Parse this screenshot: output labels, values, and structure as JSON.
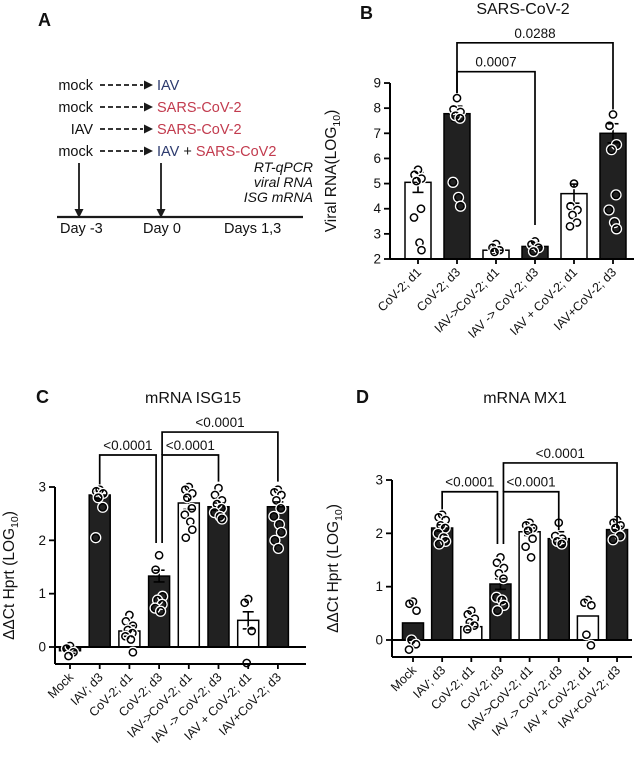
{
  "figure": {
    "background": "#ffffff"
  },
  "panel_a": {
    "label": "A",
    "rows": [
      {
        "source": "mock",
        "source_color": "black",
        "target_parts": [
          {
            "text": "IAV",
            "color": "navy"
          }
        ]
      },
      {
        "source": "mock",
        "source_color": "black",
        "target_parts": [
          {
            "text": "SARS-CoV-2",
            "color": "red"
          }
        ]
      },
      {
        "source": "IAV",
        "source_color": "navy",
        "target_parts": [
          {
            "text": "SARS-CoV-2",
            "color": "red"
          }
        ]
      },
      {
        "source": "mock",
        "source_color": "black",
        "target_parts": [
          {
            "text": "IAV",
            "color": "navy"
          },
          {
            "text": " + ",
            "color": "black"
          },
          {
            "text": "SARS-CoV2",
            "color": "red"
          }
        ]
      }
    ],
    "assay_lines": [
      "RT-qPCR",
      "viral RNA",
      "ISG mRNA"
    ],
    "timeline_labels": [
      "Day -3",
      "Day 0",
      "Days 1,3"
    ],
    "colors": {
      "navy": "#2c3a6e",
      "red": "#c23b4e",
      "black": "#1a1a1a"
    }
  },
  "chart_data": [
    {
      "panel": "B",
      "type": "bar",
      "title": "SARS-CoV-2",
      "ylabel": "Viral RNA(LOG",
      "ylabel_sub": "10",
      "ylabel_close": ")",
      "ylim": [
        2,
        9
      ],
      "yticks": [
        2,
        3,
        4,
        5,
        6,
        7,
        8,
        9
      ],
      "categories": [
        "CoV-2; d1",
        "CoV-2; d3",
        "IAV->CoV-2; d1",
        "IAV -> CoV-2; d3",
        "IAV + CoV-2; d1",
        "IAV+CoV-2; d3"
      ],
      "bars": [
        {
          "label": "CoV-2; d1",
          "fill": "white",
          "value": 5.05,
          "sem": 0.4,
          "points": [
            5.55,
            5.35,
            5.2,
            5.1,
            4.0,
            3.65,
            2.65,
            2.35
          ]
        },
        {
          "label": "CoV-2; d3",
          "fill": "black",
          "value": 7.78,
          "sem": 0.3,
          "points": [
            8.4,
            7.95,
            7.85,
            7.7,
            7.6,
            5.05,
            4.45,
            4.1
          ]
        },
        {
          "label": "IAV->CoV-2; d1",
          "fill": "white",
          "value": 2.35,
          "sem": 0.12,
          "points": [
            2.6,
            2.45,
            2.35,
            2.28
          ]
        },
        {
          "label": "IAV -> CoV-2; d3",
          "fill": "black",
          "value": 2.5,
          "sem": 0.15,
          "points": [
            2.7,
            2.58,
            2.45,
            2.3
          ]
        },
        {
          "label": "IAV + CoV-2; d1",
          "fill": "white",
          "value": 4.6,
          "sem": 0.38,
          "points": [
            5.0,
            4.1,
            3.95,
            3.75,
            3.45,
            3.3
          ]
        },
        {
          "label": "IAV+CoV-2; d3",
          "fill": "black",
          "value": 7.0,
          "sem": 0.38,
          "points": [
            7.75,
            7.3,
            6.55,
            6.35,
            4.55,
            3.95,
            3.45,
            3.2
          ]
        }
      ],
      "brackets": [
        {
          "from": 1,
          "to": 3,
          "label": "0.0007",
          "top": 9.45,
          "left_end": 8.6,
          "right_end": 3.35
        },
        {
          "from": 1,
          "to": 5,
          "label": "0.0288",
          "top": 10.6,
          "left_end": 8.6,
          "right_end": 7.95
        }
      ]
    },
    {
      "panel": "C",
      "type": "bar",
      "title": "mRNA ISG15",
      "ylabel": "ΔΔCt Hprt (LOG",
      "ylabel_sub": "10",
      "ylabel_close": ")",
      "ylim": [
        -0.4,
        3
      ],
      "yticks": [
        0,
        1,
        2,
        3
      ],
      "categories": [
        "Mock",
        "IAV; d3",
        "CoV-2; d1",
        "CoV-2; d3",
        "IAV->CoV-2; d1",
        "IAV -> CoV-2; d3",
        "IAV + CoV-2; d1",
        "IAV+CoV-2; d3"
      ],
      "bars": [
        {
          "label": "Mock",
          "fill": "black",
          "value": -0.07,
          "sem": 0.05,
          "points": [
            0.02,
            -0.03,
            -0.1,
            -0.17
          ]
        },
        {
          "label": "IAV; d3",
          "fill": "black",
          "value": 2.85,
          "sem": 0.07,
          "points": [
            2.95,
            2.92,
            2.88,
            2.8,
            2.62,
            2.05
          ]
        },
        {
          "label": "CoV-2; d1",
          "fill": "white",
          "value": 0.3,
          "sem": 0.1,
          "points": [
            0.6,
            0.48,
            0.4,
            0.32,
            0.26,
            0.2,
            0.14,
            -0.1
          ]
        },
        {
          "label": "CoV-2; d3",
          "fill": "black",
          "value": 1.33,
          "sem": 0.11,
          "points": [
            1.72,
            1.45,
            0.95,
            0.88,
            0.8,
            0.73,
            0.67
          ]
        },
        {
          "label": "IAV->CoV-2; d1",
          "fill": "white",
          "value": 2.7,
          "sem": 0.12,
          "points": [
            3.0,
            2.95,
            2.88,
            2.8,
            2.6,
            2.48,
            2.35,
            2.2,
            2.05
          ]
        },
        {
          "label": "IAV -> CoV-2; d3",
          "fill": "black",
          "value": 2.63,
          "sem": 0.07,
          "points": [
            2.98,
            2.85,
            2.75,
            2.68,
            2.6,
            2.52,
            2.45,
            2.4
          ]
        },
        {
          "label": "IAV + CoV-2; d1",
          "fill": "white",
          "value": 0.5,
          "sem": 0.16,
          "points": [
            0.9,
            0.83,
            0.3,
            -0.3
          ]
        },
        {
          "label": "IAV+CoV-2; d3",
          "fill": "black",
          "value": 2.63,
          "sem": 0.09,
          "points": [
            2.95,
            2.9,
            2.85,
            2.75,
            2.6,
            2.45,
            2.3,
            2.15,
            2.0,
            1.85
          ]
        }
      ],
      "brackets": [
        {
          "from": 1,
          "to": 3,
          "label": "<0.0001",
          "top": 3.6,
          "left_end": 3.05,
          "right_end": 1.95,
          "rdx": -3
        },
        {
          "from": 3,
          "to": 5,
          "label": "<0.0001",
          "top": 3.6,
          "left_end": 1.95,
          "ldx": 3,
          "right_end": 3.1
        },
        {
          "from": 3,
          "to": 7,
          "label": "<0.0001",
          "top": 4.03,
          "left_end": 3.6,
          "ldx": 3,
          "right_end": 3.1
        }
      ]
    },
    {
      "panel": "D",
      "type": "bar",
      "title": "mRNA MX1",
      "ylabel": "ΔΔCt Hprt (LOG",
      "ylabel_sub": "10",
      "ylabel_close": ")",
      "ylim": [
        -0.3,
        3
      ],
      "yticks": [
        0,
        1,
        2,
        3
      ],
      "categories": [
        "Mock",
        "IAV; d3",
        "CoV-2; d1",
        "CoV-2; d3",
        "IAV->CoV-2; d1",
        "IAV -> CoV-2; d3",
        "IAV + CoV-2; d1",
        "IAV+CoV-2; d3"
      ],
      "bars": [
        {
          "label": "Mock",
          "fill": "black",
          "value": 0.32,
          "sem": 0,
          "points": [
            0.72,
            0.68,
            0.55,
            0.0,
            -0.08,
            -0.18
          ]
        },
        {
          "label": "IAV; d3",
          "fill": "black",
          "value": 2.1,
          "sem": 0.06,
          "points": [
            2.35,
            2.3,
            2.25,
            2.15,
            2.1,
            2.0,
            1.92,
            1.85,
            1.8
          ]
        },
        {
          "label": "CoV-2; d1",
          "fill": "white",
          "value": 0.25,
          "sem": 0.06,
          "points": [
            0.55,
            0.48,
            0.4,
            0.33,
            0.27,
            0.2
          ]
        },
        {
          "label": "CoV-2; d3",
          "fill": "black",
          "value": 1.05,
          "sem": 0.1,
          "points": [
            1.55,
            1.45,
            1.35,
            1.25,
            1.15,
            0.8,
            0.75,
            0.65,
            0.55
          ]
        },
        {
          "label": "IAV->CoV-2; d1",
          "fill": "white",
          "value": 2.03,
          "sem": 0.07,
          "points": [
            2.2,
            2.15,
            2.1,
            2.05,
            1.9,
            1.75,
            1.55
          ]
        },
        {
          "label": "IAV -> CoV-2; d3",
          "fill": "black",
          "value": 1.9,
          "sem": 0.13,
          "points": [
            2.2,
            1.95,
            1.9,
            1.85,
            1.8
          ]
        },
        {
          "label": "IAV + CoV-2; d1",
          "fill": "white",
          "value": 0.45,
          "sem": 0,
          "points": [
            0.75,
            0.7,
            0.65,
            0.1,
            -0.1
          ]
        },
        {
          "label": "IAV+CoV-2; d3",
          "fill": "black",
          "value": 2.07,
          "sem": 0.06,
          "points": [
            2.25,
            2.2,
            2.15,
            2.1,
            1.95,
            1.88
          ]
        }
      ],
      "brackets": [
        {
          "from": 1,
          "to": 3,
          "label": "<0.0001",
          "top": 2.78,
          "left_end": 2.45,
          "right_end": 1.8,
          "rdx": -3
        },
        {
          "from": 3,
          "to": 5,
          "label": "<0.0001",
          "top": 2.78,
          "left_end": 1.8,
          "ldx": 3,
          "right_end": 2.06
        },
        {
          "from": 3,
          "to": 7,
          "label": "<0.0001",
          "top": 3.32,
          "left_end": 2.78,
          "ldx": 3,
          "right_end": 2.1
        }
      ]
    }
  ]
}
